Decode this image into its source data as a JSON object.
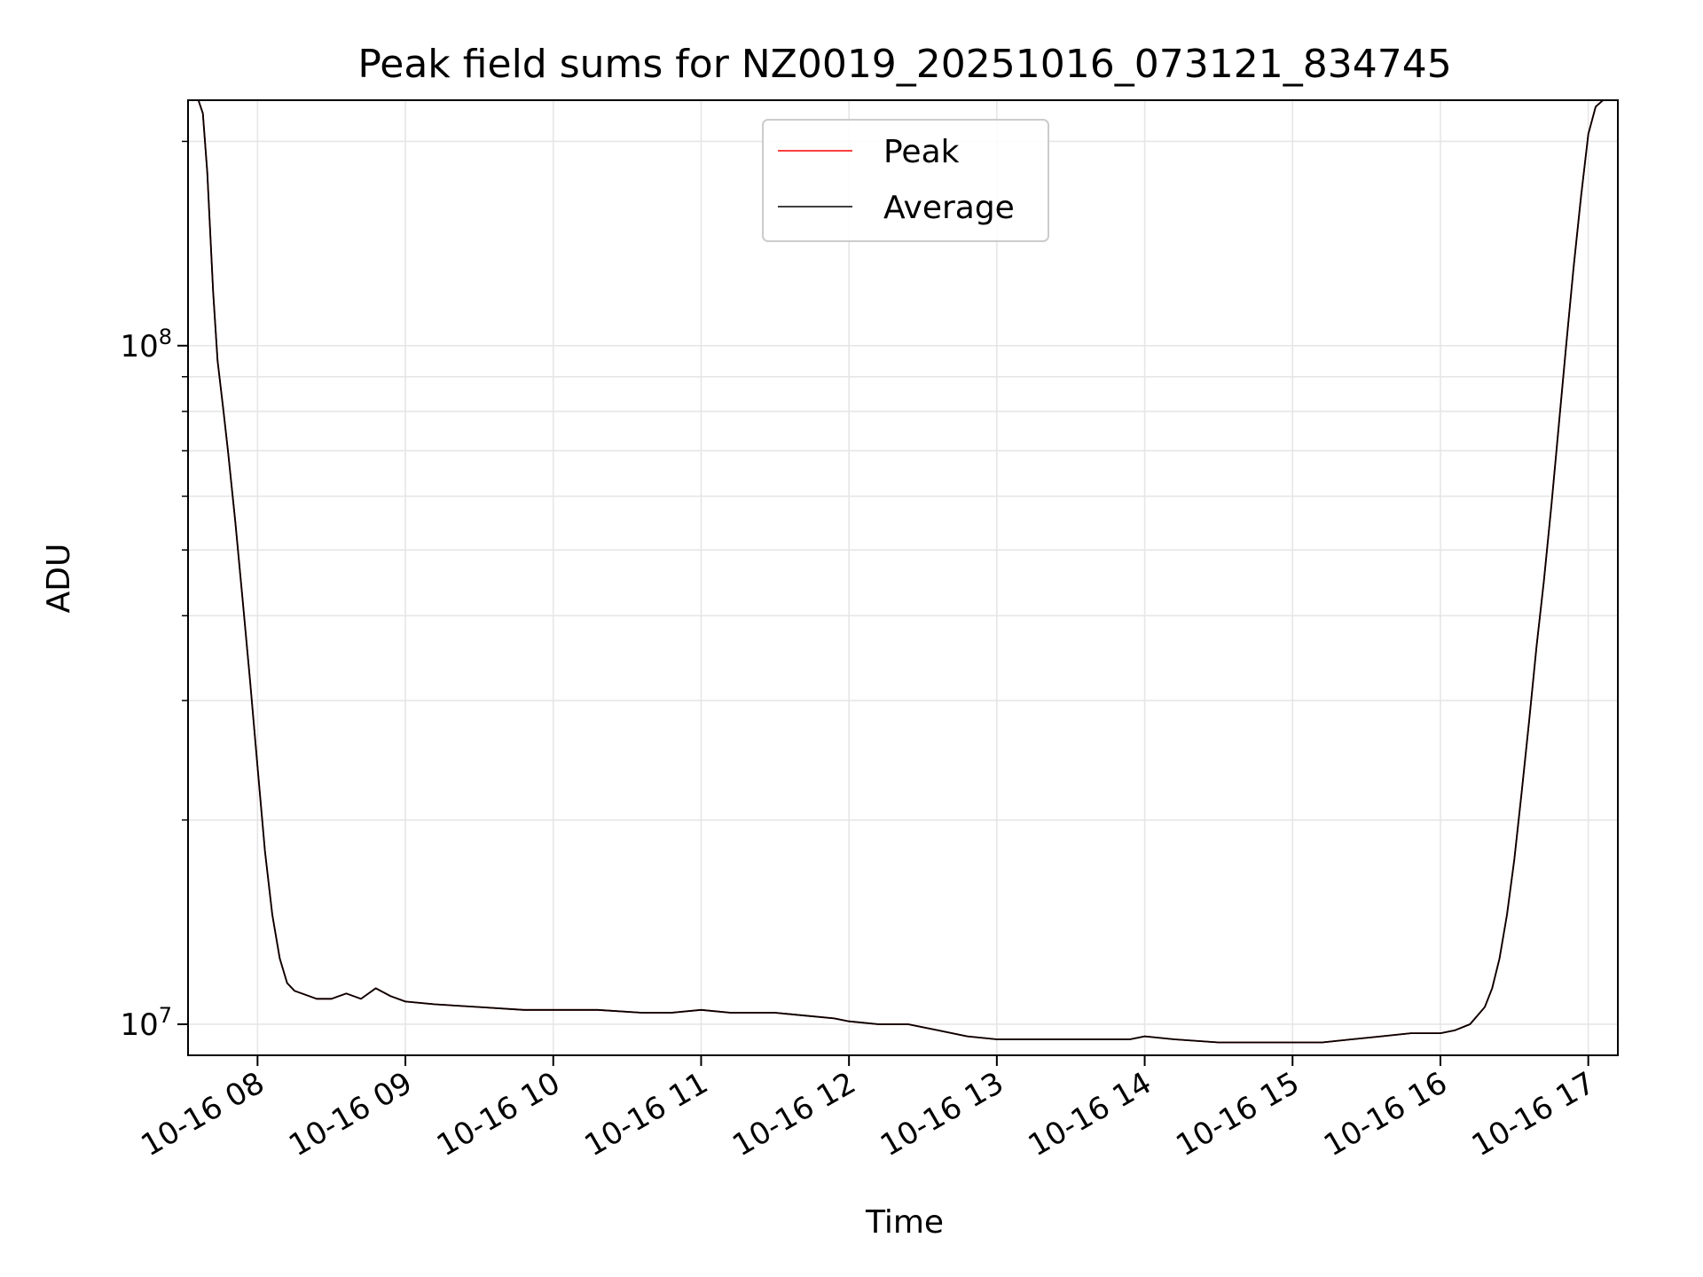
{
  "chart_data": {
    "type": "line",
    "title": "Peak field sums for NZ0019_20251016_073121_834745",
    "xlabel": "Time",
    "ylabel": "ADU",
    "yscale": "log",
    "xlim": [
      7.53,
      17.2
    ],
    "ylim": [
      9000000,
      230000000
    ],
    "grid": true,
    "legend_position": "top-center",
    "x_ticks": [
      {
        "value": 8,
        "label": "10-16 08"
      },
      {
        "value": 9,
        "label": "10-16 09"
      },
      {
        "value": 10,
        "label": "10-16 10"
      },
      {
        "value": 11,
        "label": "10-16 11"
      },
      {
        "value": 12,
        "label": "10-16 12"
      },
      {
        "value": 13,
        "label": "10-16 13"
      },
      {
        "value": 14,
        "label": "10-16 14"
      },
      {
        "value": 15,
        "label": "10-16 15"
      },
      {
        "value": 16,
        "label": "10-16 16"
      },
      {
        "value": 17,
        "label": "10-16 17"
      }
    ],
    "y_ticks": [
      {
        "value": 10000000,
        "base": "10",
        "exp": "7"
      },
      {
        "value": 100000000,
        "base": "10",
        "exp": "8"
      }
    ],
    "y_minor_ticks": [
      20000000,
      30000000,
      40000000,
      50000000,
      60000000,
      70000000,
      80000000,
      90000000,
      200000000
    ],
    "series": [
      {
        "name": "Peak",
        "color": "#ff0000",
        "x": [
          7.53,
          7.6,
          7.63,
          7.66,
          7.7,
          7.73,
          7.77,
          7.8,
          7.85,
          7.9,
          7.95,
          8.0,
          8.05,
          8.1,
          8.15,
          8.2,
          8.25,
          8.3,
          8.35,
          8.4,
          8.5,
          8.6,
          8.7,
          8.8,
          8.9,
          9.0,
          9.2,
          9.5,
          9.8,
          10.0,
          10.3,
          10.6,
          10.8,
          11.0,
          11.2,
          11.5,
          11.7,
          11.9,
          12.0,
          12.2,
          12.4,
          12.6,
          12.8,
          13.0,
          13.3,
          13.6,
          13.9,
          14.0,
          14.2,
          14.5,
          14.8,
          15.0,
          15.2,
          15.4,
          15.6,
          15.8,
          16.0,
          16.1,
          16.2,
          16.3,
          16.35,
          16.4,
          16.45,
          16.5,
          16.55,
          16.6,
          16.65,
          16.7,
          16.75,
          16.8,
          16.85,
          16.9,
          16.95,
          17.0,
          17.05,
          17.1,
          17.2
        ],
        "values": [
          230000000,
          230000000,
          220000000,
          180000000,
          120000000,
          95000000,
          80000000,
          70000000,
          55000000,
          42000000,
          32000000,
          24000000,
          18000000,
          14500000,
          12500000,
          11500000,
          11200000,
          11100000,
          11000000,
          10900000,
          10900000,
          11100000,
          10900000,
          11300000,
          11000000,
          10800000,
          10700000,
          10600000,
          10500000,
          10500000,
          10500000,
          10400000,
          10400000,
          10500000,
          10400000,
          10400000,
          10300000,
          10200000,
          10100000,
          10000000,
          10000000,
          9800000,
          9600000,
          9500000,
          9500000,
          9500000,
          9500000,
          9600000,
          9500000,
          9400000,
          9400000,
          9400000,
          9400000,
          9500000,
          9600000,
          9700000,
          9700000,
          9800000,
          10000000,
          10600000,
          11300000,
          12500000,
          14500000,
          17500000,
          22000000,
          28000000,
          36000000,
          45000000,
          58000000,
          76000000,
          100000000,
          130000000,
          165000000,
          205000000,
          225000000,
          230000000,
          230000000
        ]
      },
      {
        "name": "Average",
        "color": "#000000",
        "x": [
          7.53,
          7.6,
          7.63,
          7.66,
          7.7,
          7.73,
          7.77,
          7.8,
          7.85,
          7.9,
          7.95,
          8.0,
          8.05,
          8.1,
          8.15,
          8.2,
          8.25,
          8.3,
          8.35,
          8.4,
          8.5,
          8.6,
          8.7,
          8.8,
          8.9,
          9.0,
          9.2,
          9.5,
          9.8,
          10.0,
          10.3,
          10.6,
          10.8,
          11.0,
          11.2,
          11.5,
          11.7,
          11.9,
          12.0,
          12.2,
          12.4,
          12.6,
          12.8,
          13.0,
          13.3,
          13.6,
          13.9,
          14.0,
          14.2,
          14.5,
          14.8,
          15.0,
          15.2,
          15.4,
          15.6,
          15.8,
          16.0,
          16.1,
          16.2,
          16.3,
          16.35,
          16.4,
          16.45,
          16.5,
          16.55,
          16.6,
          16.65,
          16.7,
          16.75,
          16.8,
          16.85,
          16.9,
          16.95,
          17.0,
          17.05,
          17.1,
          17.2
        ],
        "values": [
          230000000,
          230000000,
          220000000,
          180000000,
          120000000,
          95000000,
          80000000,
          70000000,
          55000000,
          42000000,
          32000000,
          24000000,
          18000000,
          14500000,
          12500000,
          11500000,
          11200000,
          11100000,
          11000000,
          10900000,
          10900000,
          11100000,
          10900000,
          11300000,
          11000000,
          10800000,
          10700000,
          10600000,
          10500000,
          10500000,
          10500000,
          10400000,
          10400000,
          10500000,
          10400000,
          10400000,
          10300000,
          10200000,
          10100000,
          10000000,
          10000000,
          9800000,
          9600000,
          9500000,
          9500000,
          9500000,
          9500000,
          9600000,
          9500000,
          9400000,
          9400000,
          9400000,
          9400000,
          9500000,
          9600000,
          9700000,
          9700000,
          9800000,
          10000000,
          10600000,
          11300000,
          12500000,
          14500000,
          17500000,
          22000000,
          28000000,
          36000000,
          45000000,
          58000000,
          76000000,
          100000000,
          130000000,
          165000000,
          205000000,
          225000000,
          230000000,
          230000000
        ]
      }
    ]
  }
}
